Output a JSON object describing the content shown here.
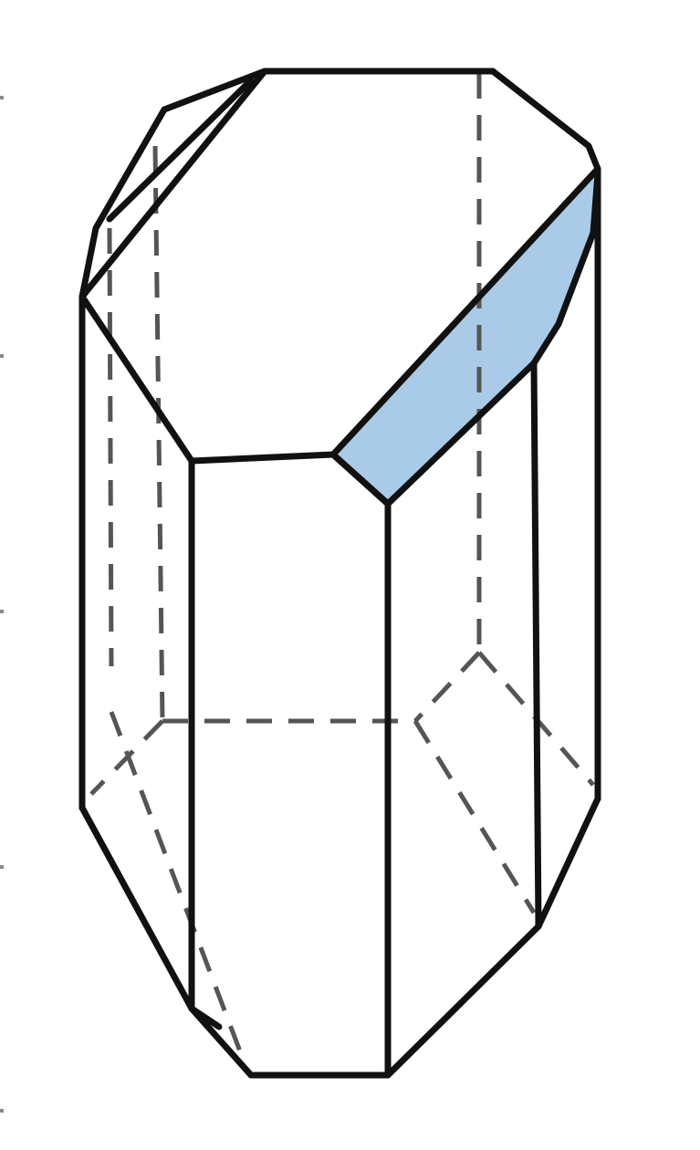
{
  "figure": {
    "kind": "crystal-prism-line-drawing",
    "background_color": "#ffffff",
    "edge_color": "#111111",
    "hidden_edge_color": "#555555",
    "highlight_face_color": "#a9cbe8",
    "highlighted_face": "truncated-edge-facet"
  }
}
